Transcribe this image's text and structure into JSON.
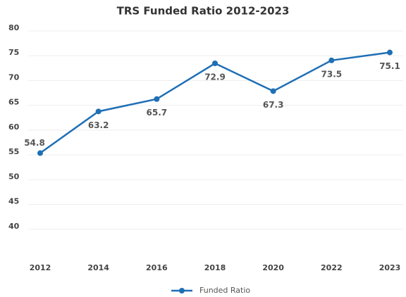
{
  "chart_data": {
    "type": "line",
    "title": "TRS Funded Ratio 2012-2023",
    "categories": [
      "2012",
      "2014",
      "2016",
      "2018",
      "2020",
      "2022",
      "2023"
    ],
    "series": [
      {
        "name": "Funded Ratio",
        "color": "#1f6fb5",
        "values": [
          54.8,
          63.2,
          65.7,
          72.9,
          67.3,
          73.5,
          75.1
        ]
      }
    ],
    "ylim": [
      35,
      80
    ],
    "yticks": [
      40,
      45,
      50,
      55,
      60,
      65,
      70,
      75,
      80
    ],
    "grid": true,
    "legend": "bottom"
  }
}
